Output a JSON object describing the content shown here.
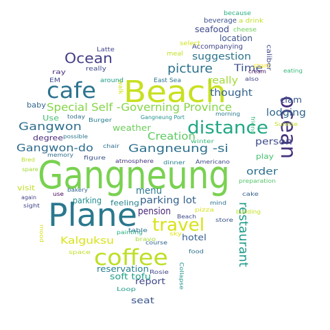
{
  "words": [
    {
      "text": "Gangneung",
      "color": "#79d151"
    },
    {
      "text": "Beach",
      "color": "#c8e020"
    },
    {
      "text": "Plane",
      "color": "#2a788e"
    },
    {
      "text": "coffee",
      "color": "#bddf26"
    },
    {
      "text": "cafe",
      "color": "#2c738e"
    },
    {
      "text": "ocean",
      "color": "#46327e"
    },
    {
      "text": "distance",
      "color": "#22a884"
    },
    {
      "text": "travel",
      "color": "#d8e219"
    },
    {
      "text": "restaurant",
      "color": "#1f9a8a"
    },
    {
      "text": "Ocean",
      "color": "#433e85"
    },
    {
      "text": "Special Self -Governing Province",
      "color": "#86d549"
    },
    {
      "text": "Gangneung -si",
      "color": "#2d708e"
    },
    {
      "text": "picture",
      "color": "#2c728e"
    },
    {
      "text": "Gangwon",
      "color": "#2e6e8e"
    },
    {
      "text": "Gangwon-do",
      "color": "#2f6b8e"
    },
    {
      "text": "Creation",
      "color": "#5ec962"
    },
    {
      "text": "suggestion",
      "color": "#2c738e"
    },
    {
      "text": "really",
      "color": "#a2da37"
    },
    {
      "text": "thought",
      "color": "#33638d"
    },
    {
      "text": "Time",
      "color": "#3b528b"
    },
    {
      "text": "lodging",
      "color": "#31668e"
    },
    {
      "text": "menu",
      "color": "#2a778e"
    },
    {
      "text": "pension",
      "color": "#482878"
    },
    {
      "text": "parking lot",
      "color": "#34618d"
    },
    {
      "text": "Kalguksu",
      "color": "#d8e219"
    },
    {
      "text": "order",
      "color": "#2d708e"
    },
    {
      "text": "person",
      "color": "#3e4a89"
    },
    {
      "text": "weather",
      "color": "#6ccd5a"
    },
    {
      "text": "hotel",
      "color": "#355f8d"
    },
    {
      "text": "seafood",
      "color": "#3e4989"
    },
    {
      "text": "location",
      "color": "#3b528b"
    },
    {
      "text": "clam",
      "color": "#39568c"
    },
    {
      "text": "parking",
      "color": "#228c8d"
    },
    {
      "text": "seat",
      "color": "#3a548c"
    },
    {
      "text": "reservation",
      "color": "#277f8e"
    },
    {
      "text": "report",
      "color": "#3f4788"
    },
    {
      "text": "soft tofu",
      "color": "#1fa088"
    },
    {
      "text": "Use",
      "color": "#44bf70"
    },
    {
      "text": "degree",
      "color": "#482979"
    },
    {
      "text": "play",
      "color": "#46c06f"
    },
    {
      "text": "feeling",
      "color": "#25848e"
    },
    {
      "text": "baby",
      "color": "#31668e"
    },
    {
      "text": "visit",
      "color": "#bddf26"
    },
    {
      "text": "beverage",
      "color": "#3b528b"
    },
    {
      "text": "Accompanying",
      "color": "#404588"
    },
    {
      "text": "caliber",
      "color": "#3f4889"
    },
    {
      "text": "because",
      "color": "#29af7f"
    },
    {
      "text": "a drink",
      "color": "#bddf26"
    },
    {
      "text": "cheese",
      "color": "#6ccd5a"
    },
    {
      "text": "start",
      "color": "#fde725"
    },
    {
      "text": "select",
      "color": "#d0e11c"
    },
    {
      "text": "meal",
      "color": "#c2df23"
    },
    {
      "text": "Latte",
      "color": "#404588"
    },
    {
      "text": "really",
      "color": "#3f4889"
    },
    {
      "text": "walk",
      "color": "#d2e21b"
    },
    {
      "text": "ray",
      "color": "#472d7b"
    },
    {
      "text": "EM",
      "color": "#3e4989"
    },
    {
      "text": "around",
      "color": "#1f9e89"
    },
    {
      "text": "East Sea",
      "color": "#2a768e"
    },
    {
      "text": "cream",
      "color": "#471365"
    },
    {
      "text": "also",
      "color": "#404588"
    },
    {
      "text": "eating",
      "color": "#35b779"
    },
    {
      "text": "morning",
      "color": "#2a788e"
    },
    {
      "text": "friend",
      "color": "#3aba76"
    },
    {
      "text": "Sunrise",
      "color": "#c2df23"
    },
    {
      "text": "today",
      "color": "#2e6e8e"
    },
    {
      "text": "Burger",
      "color": "#277f8e"
    },
    {
      "text": "Gangneung Port",
      "color": "#20938c"
    },
    {
      "text": "possible",
      "color": "#2a768e"
    },
    {
      "text": "chair",
      "color": "#2e6f8e"
    },
    {
      "text": "winter",
      "color": "#35b779"
    },
    {
      "text": "Bred",
      "color": "#b5de2b"
    },
    {
      "text": "memory",
      "color": "#2e6d8e"
    },
    {
      "text": "spare",
      "color": "#a0da39"
    },
    {
      "text": "figure",
      "color": "#3b518b"
    },
    {
      "text": "atmosphere",
      "color": "#46337e"
    },
    {
      "text": "dinner",
      "color": "#277f8e"
    },
    {
      "text": "Americano",
      "color": "#3f4889"
    },
    {
      "text": "preparation",
      "color": "#54c568"
    },
    {
      "text": "cake",
      "color": "#355f8d"
    },
    {
      "text": "again",
      "color": "#424186"
    },
    {
      "text": "use",
      "color": "#440154"
    },
    {
      "text": "bakery",
      "color": "#31668e"
    },
    {
      "text": "sight",
      "color": "#414487"
    },
    {
      "text": "mind",
      "color": "#2d708e"
    },
    {
      "text": "pizza",
      "color": "#dae319"
    },
    {
      "text": "building",
      "color": "#c5e021"
    },
    {
      "text": "mood",
      "color": "#d5e21a"
    },
    {
      "text": "Beach",
      "color": "#3e4a89"
    },
    {
      "text": "store",
      "color": "#3b528b"
    },
    {
      "text": "painting",
      "color": "#27ad81"
    },
    {
      "text": "table",
      "color": "#2c738e"
    },
    {
      "text": "sky",
      "color": "#e2e418"
    },
    {
      "text": "bravo",
      "color": "#a8db34"
    },
    {
      "text": "course",
      "color": "#31688e"
    },
    {
      "text": "Collapse",
      "color": "#20928c"
    },
    {
      "text": "food",
      "color": "#2d718e"
    },
    {
      "text": "space",
      "color": "#c0df25"
    },
    {
      "text": "Rosie",
      "color": "#404688"
    },
    {
      "text": "Loop",
      "color": "#1e9c89"
    }
  ]
}
